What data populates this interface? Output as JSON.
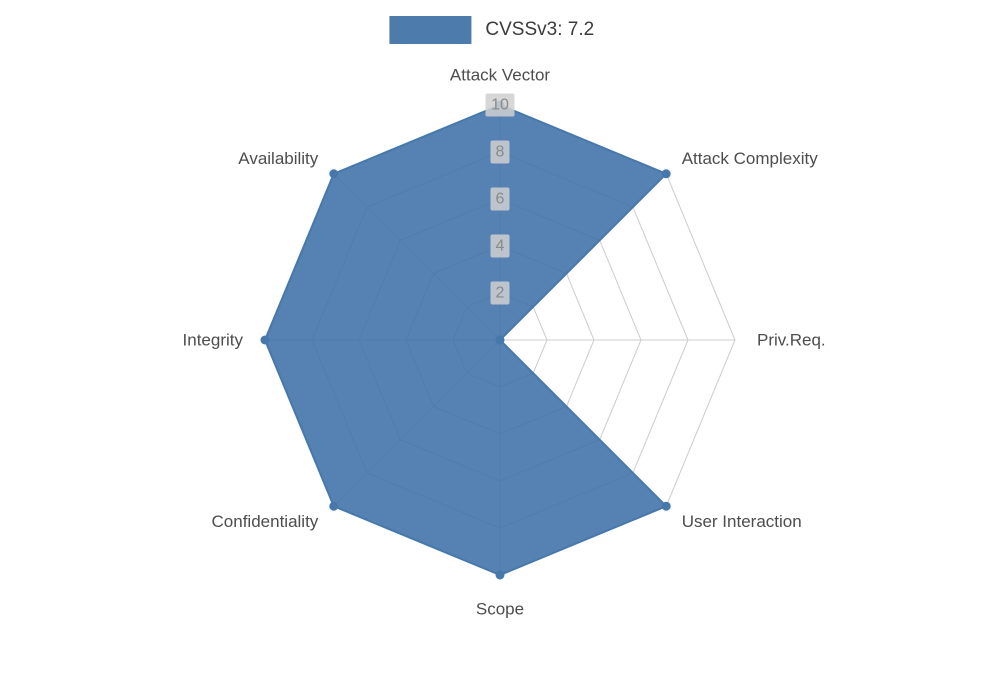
{
  "legend": {
    "label": "CVSSv3: 7.2",
    "swatch_color": "#4d7cac"
  },
  "chart_data": {
    "type": "radar",
    "title": "CVSSv3: 7.2",
    "categories": [
      "Attack Vector",
      "Attack Complexity",
      "Priv.Req.",
      "User Interaction",
      "Scope",
      "Confidentiality",
      "Integrity",
      "Availability"
    ],
    "series": [
      {
        "name": "CVSSv3: 7.2",
        "values": [
          10,
          10,
          0,
          10,
          10,
          10,
          10,
          10
        ]
      }
    ],
    "ticks": [
      2,
      4,
      6,
      8,
      10
    ],
    "max": 10,
    "axis_start": "top",
    "direction": "clockwise",
    "legend_position": "top-center",
    "grid": "on",
    "fill_color": "#3e71a8",
    "fill_opacity": 0.88,
    "stroke_color": "#4678ab",
    "grid_color": "#cccccc",
    "label_color": "#4d4d4d",
    "tick_text_color": "#8a8a8a",
    "tick_bg_color": "#d0d0d0"
  }
}
